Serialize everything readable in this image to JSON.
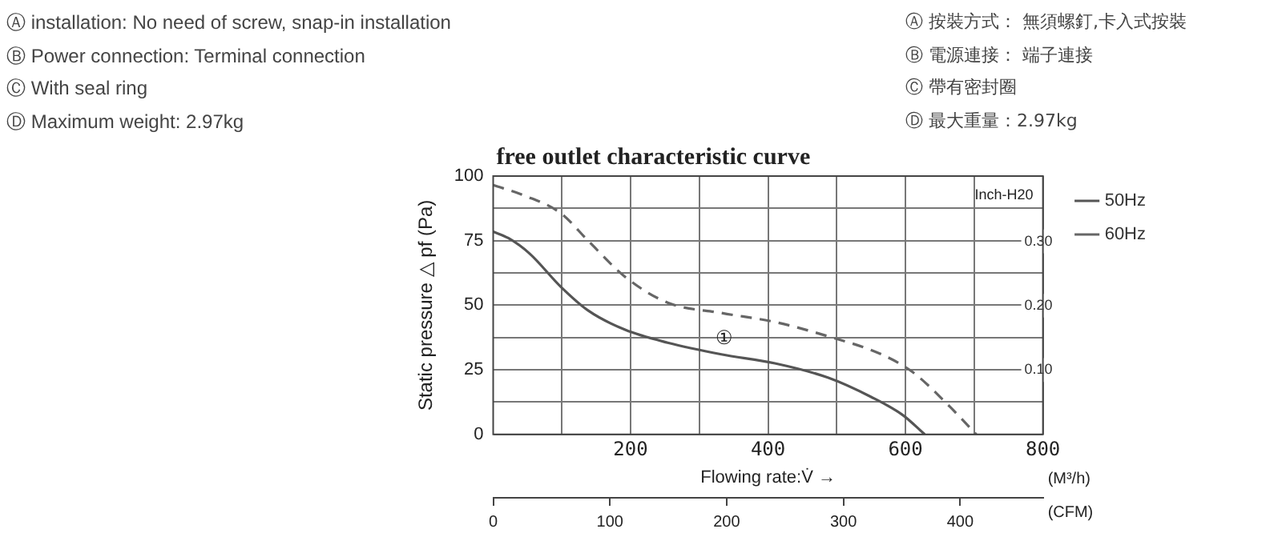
{
  "chart_data": {
    "type": "line",
    "title": "free outlet characteristic curve",
    "xlabel": "Flowing rate:V̇ →",
    "ylabel": "Static pressure △ pf (Pa)",
    "y2label": "Inch-H20",
    "x2label": "(CFM)",
    "annotations": [
      "Ⓐ installation:  No need of screw, snap-in installation",
      "Ⓑ Power connection: Terminal connection",
      "Ⓒ With seal ring",
      "Ⓓ Maximum weight:  2.97kg",
      "Ⓐ 按裝方式：  無須螺釘,卡入式按裝",
      "Ⓑ 電源連接：  端子連接",
      "Ⓒ 帶有密封圈",
      "Ⓓ 最大重量：2.97kg",
      "(M³/h)",
      "①"
    ],
    "series": [
      {
        "name": "50Hz",
        "color": "#555555",
        "line_style": "solid",
        "x": [
          0,
          22,
          53,
          99,
          138,
          192,
          254,
          332,
          410,
          487,
          550,
          596,
          628
        ],
        "values": [
          78.5,
          76,
          70,
          57,
          48,
          40.5,
          35.5,
          31,
          27.5,
          22,
          14.5,
          7.5,
          0
        ]
      },
      {
        "name": "60Hz",
        "color": "#666666",
        "line_style": "dashed",
        "x": [
          0,
          45,
          99,
          138,
          192,
          254,
          332,
          410,
          487,
          565,
          611,
          658,
          703
        ],
        "values": [
          96.5,
          92.5,
          85.5,
          75,
          61,
          51,
          47,
          43.5,
          38,
          31,
          24,
          12.5,
          0
        ]
      }
    ],
    "xlim": [
      0,
      800
    ],
    "xticks": [
      {
        "value": 100,
        "label": null
      },
      200,
      {
        "value": 300,
        "label": null
      },
      400,
      {
        "value": 500,
        "label": null
      },
      600,
      {
        "value": 700,
        "label": null
      },
      800
    ],
    "ylim": [
      0,
      100
    ],
    "yticks": [
      0,
      {
        "value": 12.5,
        "label": null
      },
      25,
      {
        "value": 37.5,
        "label": null
      },
      50,
      {
        "value": 62.5,
        "label": null
      },
      75,
      {
        "value": 87.5,
        "label": null
      },
      100
    ],
    "y2lim": [
      0,
      0.4016
    ],
    "y2ticks": [
      {
        "value": 0.1,
        "label": "0.10"
      },
      {
        "value": 0.2,
        "label": "0.20"
      },
      {
        "value": 0.3,
        "label": "0.30"
      }
    ],
    "x2lim": [
      0,
      470.9
    ],
    "x2ticks": [
      0,
      100,
      200,
      300,
      400
    ],
    "grid": true,
    "legend": "top right",
    "marker": "none"
  }
}
